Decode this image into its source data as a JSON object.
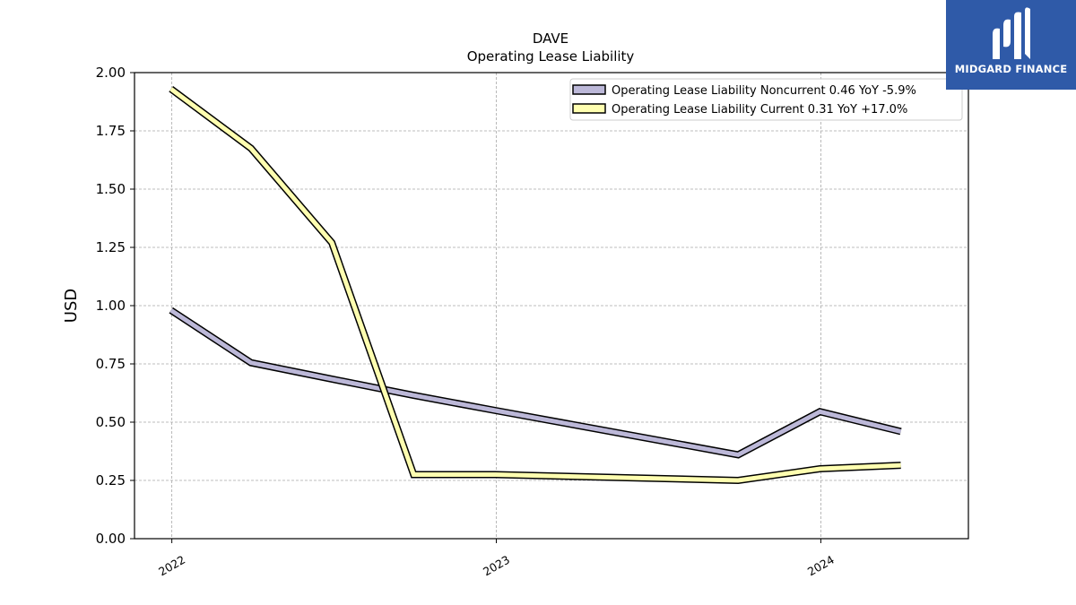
{
  "chart_data": {
    "type": "line",
    "title": "DAVE",
    "subtitle": "Operating Lease Liability",
    "ylabel": "USD",
    "xlabel": "",
    "ylim": [
      0,
      2.0
    ],
    "xlim": [
      "2021-11-20",
      "2024-06-15"
    ],
    "y_ticks": [
      "0.00",
      "0.25",
      "0.50",
      "0.75",
      "1.00",
      "1.25",
      "1.50",
      "1.75",
      "2.00"
    ],
    "x_ticks": [
      {
        "date": "2022-01-01",
        "label": "2022"
      },
      {
        "date": "2023-01-01",
        "label": "2023"
      },
      {
        "date": "2024-01-01",
        "label": "2024"
      }
    ],
    "grid": true,
    "legend_position": "top-right",
    "series": [
      {
        "name": "Operating Lease Liability Noncurrent",
        "legend_label": "Operating Lease Liability Noncurrent  0.46 YoY -5.9%",
        "color": "#bcb8d8",
        "edge_color": "#000000",
        "points": [
          {
            "x": "2021-12-31",
            "y": 0.98
          },
          {
            "x": "2022-03-31",
            "y": 0.755
          },
          {
            "x": "2022-06-30",
            "y": 0.685
          },
          {
            "x": "2022-09-30",
            "y": 0.615
          },
          {
            "x": "2022-12-31",
            "y": 0.55
          },
          {
            "x": "2023-09-30",
            "y": 0.36
          },
          {
            "x": "2023-12-31",
            "y": 0.545
          },
          {
            "x": "2024-03-31",
            "y": 0.46
          }
        ]
      },
      {
        "name": "Operating Lease Liability Current",
        "legend_label": "Operating Lease Liability Current  0.31 YoY +17.0%",
        "color": "#ffffb0",
        "edge_color": "#000000",
        "points": [
          {
            "x": "2021-12-31",
            "y": 1.93
          },
          {
            "x": "2022-03-31",
            "y": 1.675
          },
          {
            "x": "2022-06-30",
            "y": 1.27
          },
          {
            "x": "2022-09-30",
            "y": 0.275
          },
          {
            "x": "2022-12-31",
            "y": 0.275
          },
          {
            "x": "2023-09-30",
            "y": 0.25
          },
          {
            "x": "2023-12-31",
            "y": 0.3
          },
          {
            "x": "2024-03-31",
            "y": 0.315
          }
        ]
      }
    ]
  },
  "logo": {
    "text": "MIDGARD FINANCE",
    "icon": "midgard-finance-logo-icon",
    "background": "#2f5aa8"
  }
}
